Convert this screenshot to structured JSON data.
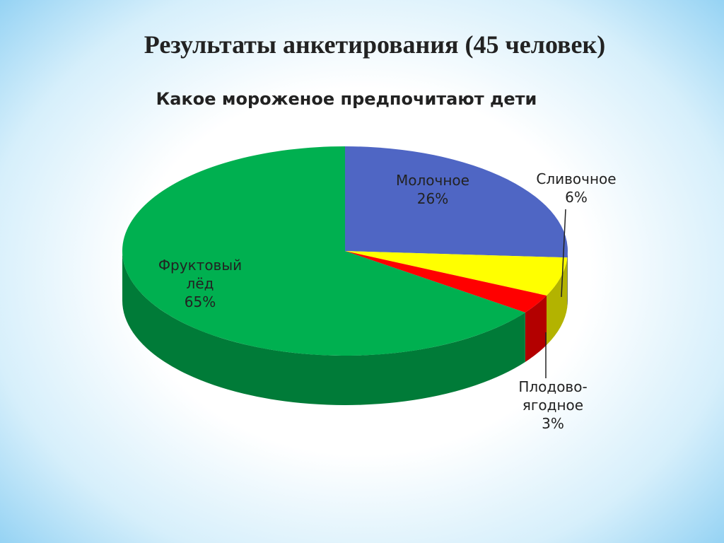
{
  "heading": "Результаты анкетирования (45 человек)",
  "chart_data": {
    "type": "pie3d",
    "title": "Какое мороженое предпочитают дети",
    "categories": [
      "Молочное",
      "Сливочное",
      "Плодово-ягодное",
      "Фруктовый лёд"
    ],
    "values": [
      26,
      6,
      3,
      65
    ],
    "value_labels": [
      "26%",
      "6%",
      "3%",
      "65%"
    ],
    "colors": [
      "#4f66c4",
      "#ffff00",
      "#ff0000",
      "#00b050"
    ]
  }
}
